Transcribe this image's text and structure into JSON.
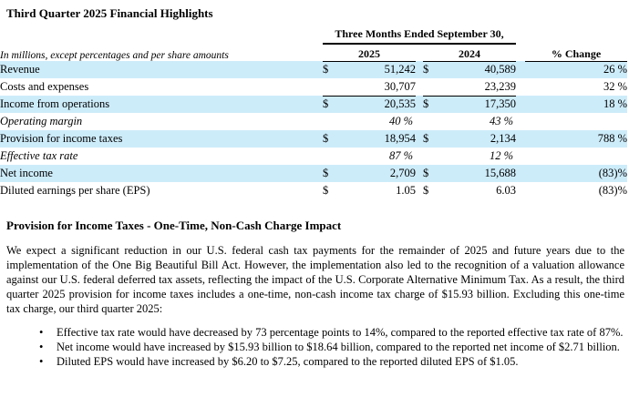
{
  "title": "Third Quarter 2025 Financial Highlights",
  "table": {
    "caption": "In millions, except percentages and per share amounts",
    "period_header": "Three Months Ended September 30,",
    "columns": {
      "y2025": "2025",
      "y2024": "2024",
      "change": "% Change"
    },
    "rows": [
      {
        "label": "Revenue",
        "cur_2025": "$",
        "val_2025": "51,242",
        "cur_2024": "$",
        "val_2024": "40,589",
        "change": "26 %"
      },
      {
        "label": "Costs and expenses",
        "cur_2025": "",
        "val_2025": "30,707",
        "cur_2024": "",
        "val_2024": "23,239",
        "change": "32 %"
      },
      {
        "label": "Income from operations",
        "cur_2025": "$",
        "val_2025": "20,535",
        "cur_2024": "$",
        "val_2024": "17,350",
        "change": "18 %"
      },
      {
        "label": "Operating margin",
        "cur_2025": "",
        "val_2025": "40 %",
        "cur_2024": "",
        "val_2024": "43 %",
        "change": ""
      },
      {
        "label": "Provision for income taxes",
        "cur_2025": "$",
        "val_2025": "18,954",
        "cur_2024": "$",
        "val_2024": "2,134",
        "change": "788 %"
      },
      {
        "label": "Effective tax rate",
        "cur_2025": "",
        "val_2025": "87 %",
        "cur_2024": "",
        "val_2024": "12 %",
        "change": ""
      },
      {
        "label": "Net income",
        "cur_2025": "$",
        "val_2025": "2,709",
        "cur_2024": "$",
        "val_2024": "15,688",
        "change": "(83)%"
      },
      {
        "label": "Diluted earnings per share (EPS)",
        "cur_2025": "$",
        "val_2025": "1.05",
        "cur_2024": "$",
        "val_2024": "6.03",
        "change": "(83)%"
      }
    ]
  },
  "section": {
    "heading": "Provision for Income Taxes - One-Time, Non-Cash Charge Impact",
    "paragraph": "We expect a significant reduction in our U.S. federal cash tax payments for the remainder of 2025 and future years due to the implementation of the One Big Beautiful Bill Act. However, the implementation also led to the recognition of a valuation allowance against our U.S. federal deferred tax assets, reflecting the impact of the U.S. Corporate Alternative Minimum Tax. As a result, the third quarter 2025 provision for income taxes includes a one-time, non-cash income tax charge of $15.93 billion. Excluding this one-time tax charge, our third quarter 2025:",
    "bullet_marker": "•",
    "bullets": [
      "Effective tax rate would have decreased by 73 percentage points to 14%, compared to the reported effective tax rate of 87%.",
      "Net income would have increased by $15.93 billion to $18.64 billion, compared to the reported net income of $2.71 billion.",
      "Diluted EPS would have increased by $6.20 to $7.25, compared to the reported diluted EPS of $1.05."
    ]
  },
  "colors": {
    "row_highlight": "#cdecfa",
    "text": "#000000",
    "rule": "#000000"
  }
}
